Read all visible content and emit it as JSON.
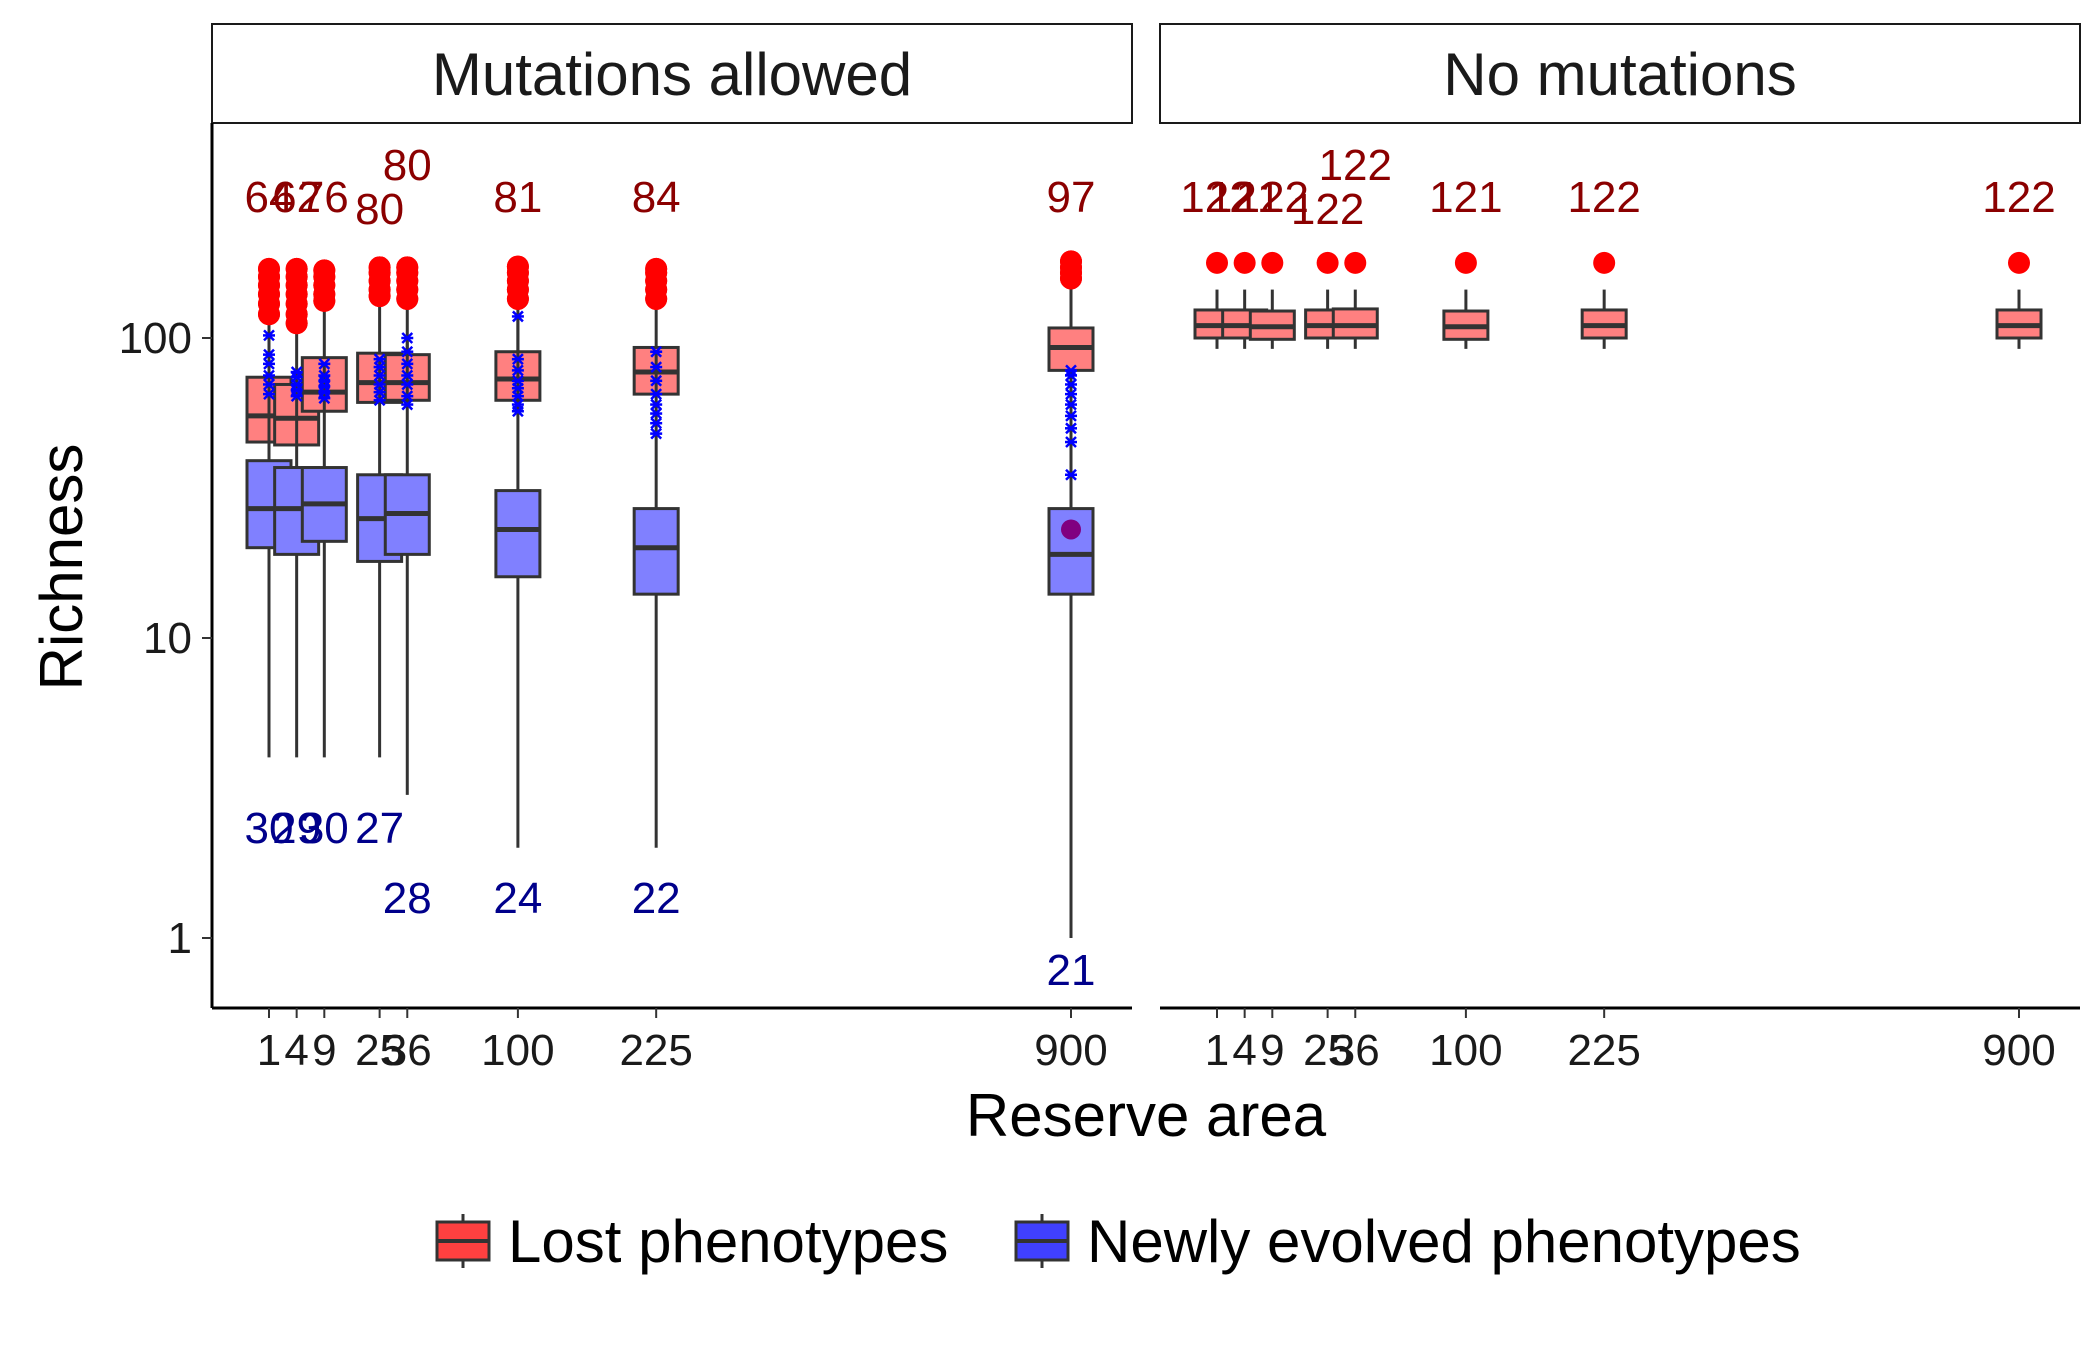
{
  "chart_data": {
    "type": "boxplot",
    "xlabel": "Reserve area",
    "ylabel": "Richness",
    "y_scale": "log10",
    "ylim": [
      0.6,
      650
    ],
    "yticks": [
      1,
      10,
      100
    ],
    "ytick_labels": [
      "1",
      "10",
      "100"
    ],
    "x_scale": "sqrt",
    "x_categories": [
      1,
      4,
      9,
      25,
      36,
      100,
      225,
      900
    ],
    "x_tick_labels": [
      "1",
      "4",
      "9",
      "25",
      "36",
      "100",
      "225",
      "900"
    ],
    "grid": false,
    "legend_position": "bottom",
    "colors": {
      "lost": "#FF8080",
      "lost_legend": "#FF4040",
      "lost_outlier": "#FF0000",
      "new": "#8080FF",
      "new_legend": "#4040FF",
      "new_outlier": "#0000FF",
      "box_line": "#333333",
      "top_label": "#8B0000",
      "bottom_label": "#00008B",
      "mean_dot": "#800080"
    },
    "legend": [
      {
        "key": "lost",
        "label": "Lost phenotypes"
      },
      {
        "key": "new",
        "label": "Newly evolved phenotypes"
      }
    ],
    "panels": [
      {
        "title": "Mutations allowed",
        "series": [
          {
            "name": "Lost phenotypes",
            "key": "lost",
            "boxes": [
              {
                "x": 1,
                "q1": 45,
                "median": 55,
                "q3": 74,
                "whisker_low": 45,
                "whisker_high": 112,
                "outliers": [
                  120,
                  130,
                  140,
                  150,
                  160,
                  170
                ]
              },
              {
                "x": 4,
                "q1": 44,
                "median": 54,
                "q3": 70,
                "whisker_low": 44,
                "whisker_high": 108,
                "outliers": [
                  112,
                  120,
                  130,
                  140,
                  150,
                  160,
                  170
                ]
              },
              {
                "x": 9,
                "q1": 57,
                "median": 66,
                "q3": 86,
                "whisker_low": 57,
                "whisker_high": 128,
                "outliers": [
                  133,
                  140,
                  150,
                  160,
                  168
                ]
              },
              {
                "x": 25,
                "q1": 61,
                "median": 71,
                "q3": 89,
                "whisker_low": 61,
                "whisker_high": 133,
                "outliers": [
                  138,
                  145,
                  155,
                  165,
                  172
                ]
              },
              {
                "x": 36,
                "q1": 62,
                "median": 71,
                "q3": 88,
                "whisker_low": 62,
                "whisker_high": 131,
                "outliers": [
                  135,
                  145,
                  155,
                  165,
                  172
                ]
              },
              {
                "x": 100,
                "q1": 62,
                "median": 73,
                "q3": 90,
                "whisker_low": 62,
                "whisker_high": 130,
                "outliers": [
                  135,
                  145,
                  155,
                  165,
                  173
                ]
              },
              {
                "x": 225,
                "q1": 65,
                "median": 77,
                "q3": 93,
                "whisker_low": 65,
                "whisker_high": 130,
                "outliers": [
                  135,
                  145,
                  155,
                  165,
                  170
                ]
              },
              {
                "x": 900,
                "q1": 78,
                "median": 93,
                "q3": 108,
                "whisker_low": 78,
                "whisker_high": 150,
                "outliers": [
                  158,
                  165,
                  172,
                  180
                ]
              }
            ]
          },
          {
            "name": "Newly evolved phenotypes",
            "key": "new",
            "boxes": [
              {
                "x": 1,
                "q1": 20,
                "median": 27,
                "q3": 39,
                "whisker_low": 4,
                "whisker_high": 105,
                "outliers": [
                  65,
                  70,
                  75,
                  82,
                  88,
                  102
                ]
              },
              {
                "x": 4,
                "q1": 19,
                "median": 27,
                "q3": 37,
                "whisker_low": 4,
                "whisker_high": 78,
                "outliers": [
                  64,
                  67,
                  70,
                  74,
                  77
                ]
              },
              {
                "x": 9,
                "q1": 21,
                "median": 28,
                "q3": 37,
                "whisker_low": 4,
                "whisker_high": 83,
                "outliers": [
                  63,
                  66,
                  69,
                  72,
                  75,
                  82
                ]
              },
              {
                "x": 25,
                "q1": 18,
                "median": 25,
                "q3": 35,
                "whisker_low": 4,
                "whisker_high": 85,
                "outliers": [
                  62,
                  66,
                  70,
                  75,
                  80,
                  85
                ]
              },
              {
                "x": 36,
                "q1": 19,
                "median": 26,
                "q3": 35,
                "whisker_low": 3,
                "whisker_high": 100,
                "outliers": [
                  60,
                  64,
                  70,
                  75,
                  82,
                  90,
                  100
                ]
              },
              {
                "x": 100,
                "q1": 16,
                "median": 23,
                "q3": 31,
                "whisker_low": 2,
                "whisker_high": 118,
                "outliers": [
                  57,
                  60,
                  64,
                  68,
                  72,
                  78,
                  85,
                  118
                ]
              },
              {
                "x": 225,
                "q1": 14,
                "median": 20,
                "q3": 27,
                "whisker_low": 2,
                "whisker_high": 90,
                "outliers": [
                  48,
                  52,
                  56,
                  60,
                  65,
                  72,
                  80,
                  90
                ]
              },
              {
                "x": 900,
                "q1": 14,
                "median": 19,
                "q3": 27,
                "whisker_low": 1,
                "whisker_high": 78,
                "outliers": [
                  35,
                  45,
                  50,
                  55,
                  60,
                  65,
                  70,
                  75,
                  78
                ],
                "mean": 23
              }
            ]
          }
        ],
        "top_labels": [
          "64",
          "62",
          "76",
          "80",
          "80",
          "81",
          "84",
          "97"
        ],
        "bottom_labels": [
          "30",
          "29",
          "30",
          "27",
          "28",
          "24",
          "22",
          "21"
        ]
      },
      {
        "title": "No mutations",
        "series": [
          {
            "name": "Lost phenotypes",
            "key": "lost",
            "boxes": [
              {
                "x": 1,
                "q1": 100,
                "median": 110,
                "q3": 124,
                "whisker_low": 92,
                "whisker_high": 145,
                "outliers": [
                  178
                ]
              },
              {
                "x": 4,
                "q1": 100,
                "median": 110,
                "q3": 124,
                "whisker_low": 92,
                "whisker_high": 145,
                "outliers": [
                  178
                ]
              },
              {
                "x": 9,
                "q1": 99,
                "median": 109,
                "q3": 123,
                "whisker_low": 92,
                "whisker_high": 145,
                "outliers": [
                  178
                ]
              },
              {
                "x": 25,
                "q1": 100,
                "median": 110,
                "q3": 124,
                "whisker_low": 92,
                "whisker_high": 145,
                "outliers": [
                  178
                ]
              },
              {
                "x": 36,
                "q1": 100,
                "median": 110,
                "q3": 125,
                "whisker_low": 92,
                "whisker_high": 145,
                "outliers": [
                  178
                ]
              },
              {
                "x": 100,
                "q1": 99,
                "median": 109,
                "q3": 123,
                "whisker_low": 92,
                "whisker_high": 145,
                "outliers": [
                  178
                ]
              },
              {
                "x": 225,
                "q1": 100,
                "median": 110,
                "q3": 124,
                "whisker_low": 92,
                "whisker_high": 145,
                "outliers": [
                  178
                ]
              },
              {
                "x": 900,
                "q1": 100,
                "median": 110,
                "q3": 124,
                "whisker_low": 92,
                "whisker_high": 145,
                "outliers": [
                  178
                ]
              }
            ]
          }
        ],
        "top_labels": [
          "122",
          "121",
          "122",
          "122",
          "122",
          "121",
          "122",
          "122"
        ],
        "bottom_labels": []
      }
    ]
  }
}
